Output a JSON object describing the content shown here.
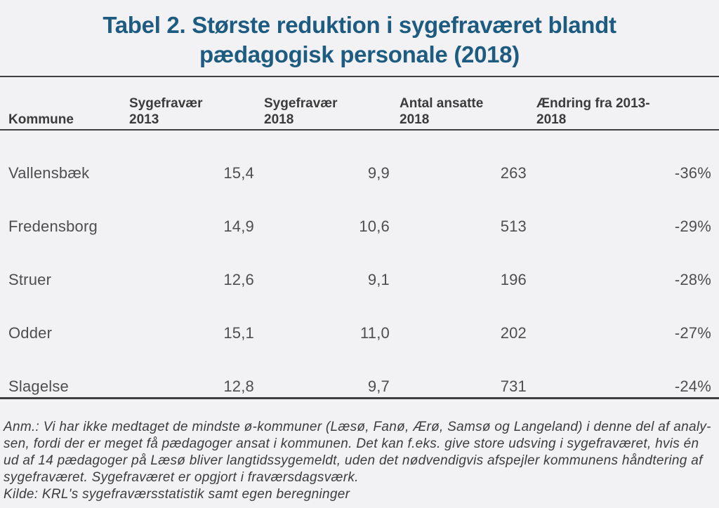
{
  "title": {
    "line1": "Tabel 2. Største reduktion i sygefraværet blandt",
    "line2": "pædagogisk personale (2018)"
  },
  "table": {
    "columns": [
      {
        "line1": "Kommune",
        "line2": ""
      },
      {
        "line1": "Sygefravær",
        "line2": "2013"
      },
      {
        "line1": "Sygefravær",
        "line2": "2018"
      },
      {
        "line1": "Antal ansatte",
        "line2": "2018"
      },
      {
        "line1": "Ændring fra 2013-",
        "line2": "2018"
      }
    ],
    "rows": [
      {
        "kommune": "Vallensbæk",
        "sygefravaer_2013": "15,4",
        "sygefravaer_2018": "9,9",
        "antal_ansatte_2018": "263",
        "aendring": "-36%"
      },
      {
        "kommune": "Fredensborg",
        "sygefravaer_2013": "14,9",
        "sygefravaer_2018": "10,6",
        "antal_ansatte_2018": "513",
        "aendring": "-29%"
      },
      {
        "kommune": "Struer",
        "sygefravaer_2013": "12,6",
        "sygefravaer_2018": "9,1",
        "antal_ansatte_2018": "196",
        "aendring": "-28%"
      },
      {
        "kommune": "Odder",
        "sygefravaer_2013": "15,1",
        "sygefravaer_2018": "11,0",
        "antal_ansatte_2018": "202",
        "aendring": "-27%"
      },
      {
        "kommune": "Slagelse",
        "sygefravaer_2013": "12,8",
        "sygefravaer_2018": "9,7",
        "antal_ansatte_2018": "731",
        "aendring": "-24%"
      }
    ]
  },
  "footnote": {
    "lines": [
      "Anm.: Vi har ikke medtaget de mindste ø-kommuner (Læsø, Fanø, Ærø, Samsø og Langeland) i denne del af analy-",
      "sen, fordi der er meget få pædagoger ansat i kommunen. Det kan f.eks.  give store udsving i sygefraværet, hvis én",
      "ud af 14 pædagoger på Læsø bliver langtidssygemeldt, uden det nødvendigvis afspejler kommunens håndtering af",
      "sygefraværet.  Sygefraværet er opgjort i fraværsdagsværk.",
      "Kilde: KRL's sygefraværsstatistik samt egen beregninger"
    ]
  },
  "colors": {
    "title_blue": "#1e5b80",
    "header_text": "#3b3b3b",
    "body_text": "#4e4e4e",
    "rule": "#3f3f3f",
    "background": "#f2f2f4"
  }
}
